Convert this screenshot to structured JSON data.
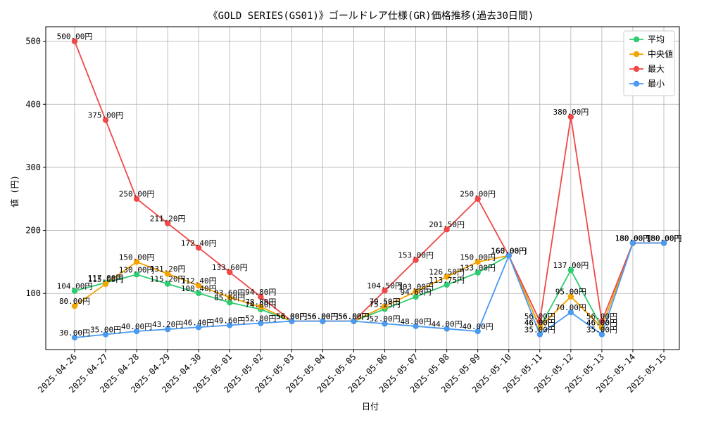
{
  "chart_data": {
    "type": "line",
    "title": "《GOLD SERIES(GS01)》ゴールドレア仕様(GR)価格推移(過去30日間)",
    "xlabel": "日付",
    "ylabel": "値 (円)",
    "ylim": [
      11,
      523
    ],
    "yticks": [
      100,
      200,
      300,
      400,
      500
    ],
    "grid": true,
    "legend_position": "top-right",
    "unit_suffix": "円",
    "categories": [
      "2025-04-26",
      "2025-04-27",
      "2025-04-28",
      "2025-04-29",
      "2025-04-30",
      "2025-05-01",
      "2025-05-02",
      "2025-05-03",
      "2025-05-04",
      "2025-05-05",
      "2025-05-06",
      "2025-05-07",
      "2025-05-08",
      "2025-05-09",
      "2025-05-10",
      "2025-05-11",
      "2025-05-12",
      "2025-05-13",
      "2025-05-14",
      "2025-05-15"
    ],
    "series": [
      {
        "name": "平均",
        "color": "#2ecc71",
        "values": [
          104.0,
          117.0,
          130.0,
          115.2,
          100.4,
          85.6,
          74.8,
          56.0,
          56.0,
          56.0,
          75.25,
          94.6,
          113.75,
          133.0,
          160.0,
          46.0,
          137.0,
          46.0,
          180.0,
          180.0
        ]
      },
      {
        "name": "中央値",
        "color": "#f5a300",
        "values": [
          80.0,
          115.0,
          150.0,
          131.2,
          112.4,
          93.6,
          78.8,
          56.0,
          56.0,
          56.0,
          79.5,
          103.0,
          126.5,
          150.0,
          160.0,
          46.0,
          95.0,
          46.0,
          180.0,
          180.0
        ]
      },
      {
        "name": "最大",
        "color": "#f04848",
        "values": [
          500.0,
          375.0,
          250.0,
          211.2,
          172.4,
          133.6,
          94.8,
          56.0,
          56.0,
          56.0,
          104.5,
          153.0,
          201.5,
          250.0,
          160.0,
          56.0,
          380.0,
          56.0,
          180.0,
          180.0
        ]
      },
      {
        "name": "最小",
        "color": "#4a9af0",
        "values": [
          30.0,
          35.0,
          40.0,
          43.2,
          46.4,
          49.6,
          52.8,
          56.0,
          56.0,
          56.0,
          52.0,
          48.0,
          44.0,
          40.0,
          160.0,
          35.0,
          70.0,
          35.0,
          180.0,
          180.0
        ]
      }
    ]
  }
}
